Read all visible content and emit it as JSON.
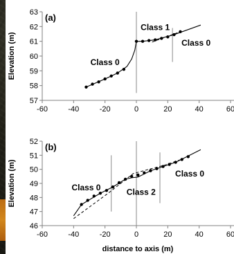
{
  "chart_data": [
    {
      "type": "line",
      "panel_label": "(a)",
      "ylabel": "Elevation (m)",
      "xlabel": "",
      "xlim": [
        -60,
        60
      ],
      "ylim": [
        57,
        63
      ],
      "x_ticks": [
        -60,
        -40,
        -20,
        0,
        20,
        40,
        60
      ],
      "y_ticks": [
        57,
        58,
        59,
        60,
        61,
        62,
        63
      ],
      "points": [
        [
          -32,
          57.9
        ],
        [
          -28,
          58.1
        ],
        [
          -24,
          58.25
        ],
        [
          -20,
          58.45
        ],
        [
          -16,
          58.65
        ],
        [
          -12,
          58.85
        ],
        [
          -8,
          59.1
        ],
        [
          0,
          61.0
        ],
        [
          4,
          61.0
        ],
        [
          8,
          61.05
        ],
        [
          12,
          61.1
        ],
        [
          16,
          61.2
        ],
        [
          20,
          61.3
        ],
        [
          24,
          61.45
        ],
        [
          28,
          61.65
        ]
      ],
      "solid_line": [
        [
          -32,
          57.9
        ],
        [
          -20,
          58.45
        ],
        [
          -12,
          58.85
        ],
        [
          -6,
          59.3
        ],
        [
          -3,
          59.8
        ],
        [
          -1,
          60.4
        ],
        [
          0,
          61.0
        ],
        [
          4,
          61.0
        ],
        [
          12,
          61.1
        ],
        [
          24,
          61.45
        ],
        [
          41,
          62.1
        ]
      ],
      "dashed_line": [
        [
          10,
          60.95
        ],
        [
          28,
          61.65
        ]
      ],
      "boundaries": [
        {
          "x": 0,
          "ymin": 57.5,
          "ymax": 63
        },
        {
          "x": 23,
          "ymin": 59.6,
          "ymax": 61.9
        }
      ],
      "annotations": [
        {
          "text": "Class 0",
          "x": -20,
          "y": 59.4
        },
        {
          "text": "Class 1",
          "x": 12,
          "y": 61.75
        },
        {
          "text": "Class 0",
          "x": 38,
          "y": 60.7
        }
      ]
    },
    {
      "type": "line",
      "panel_label": "(b)",
      "ylabel": "Elevation (m)",
      "xlabel": "distance to axis (m)",
      "xlim": [
        -60,
        60
      ],
      "ylim": [
        46,
        52
      ],
      "x_ticks": [
        -60,
        -40,
        -20,
        0,
        20,
        40,
        60
      ],
      "y_ticks": [
        46,
        47,
        48,
        49,
        50,
        51,
        52
      ],
      "points": [
        [
          -35,
          47.5
        ],
        [
          -31,
          47.8
        ],
        [
          -27,
          48.1
        ],
        [
          -23,
          48.3
        ],
        [
          -19,
          48.5
        ],
        [
          -15,
          48.75
        ],
        [
          -11,
          49.05
        ],
        [
          -7,
          49.3
        ],
        [
          -3,
          49.5
        ],
        [
          1,
          49.6
        ],
        [
          5,
          49.75
        ],
        [
          9,
          49.9
        ],
        [
          13,
          50.05
        ],
        [
          17,
          50.2
        ],
        [
          21,
          50.35
        ],
        [
          25,
          50.5
        ],
        [
          29,
          50.7
        ],
        [
          33,
          50.9
        ]
      ],
      "solid_line": [
        [
          -40,
          46.7
        ],
        [
          -35,
          47.5
        ],
        [
          -23,
          48.3
        ],
        [
          -15,
          48.75
        ],
        [
          -7,
          49.3
        ],
        [
          -3,
          49.4
        ],
        [
          1,
          49.45
        ],
        [
          9,
          49.9
        ],
        [
          17,
          50.2
        ],
        [
          25,
          50.5
        ],
        [
          41,
          51.4
        ]
      ],
      "dashed_line": [
        [
          -40,
          46.5
        ],
        [
          -18,
          48.3
        ],
        [
          -2,
          49.7
        ],
        [
          18,
          50.3
        ],
        [
          30,
          50.75
        ]
      ],
      "boundaries": [
        {
          "x": -16,
          "ymin": 47.0,
          "ymax": 51.0
        },
        {
          "x": 0,
          "ymin": 46.0,
          "ymax": 52.0
        },
        {
          "x": 15,
          "ymin": 47.6,
          "ymax": 51.2
        }
      ],
      "annotations": [
        {
          "text": "Class 0",
          "x": -32,
          "y": 48.5
        },
        {
          "text": "Class 2",
          "x": 3,
          "y": 48.2
        },
        {
          "text": "Class 0",
          "x": 34,
          "y": 49.5
        }
      ]
    }
  ]
}
